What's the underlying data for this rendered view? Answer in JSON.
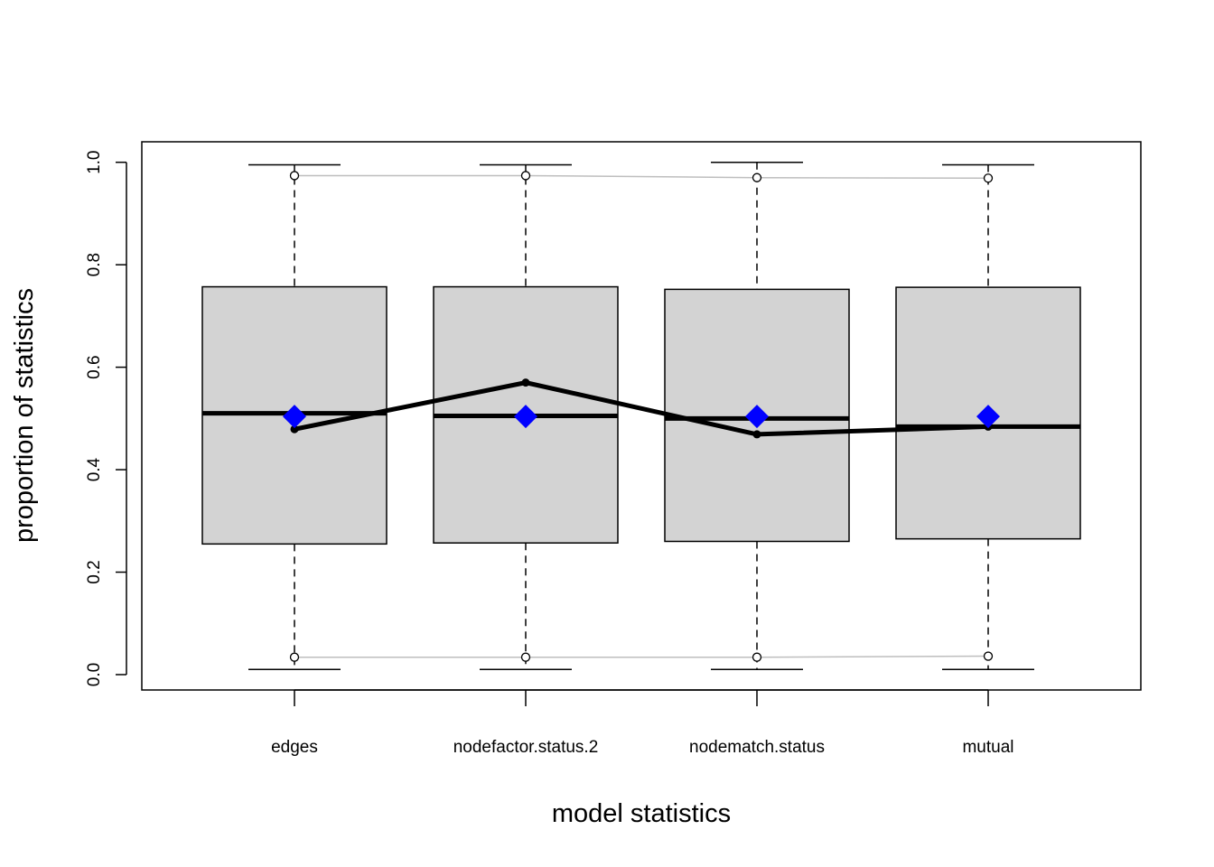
{
  "chart_data": {
    "type": "boxplot",
    "xlabel": "model statistics",
    "ylabel": "proportion of statistics",
    "ylim": [
      -0.03,
      1.04
    ],
    "yticks": [
      0.0,
      0.2,
      0.4,
      0.6,
      0.8,
      1.0
    ],
    "ytick_labels": [
      "0.0",
      "0.2",
      "0.4",
      "0.6",
      "0.8",
      "1.0"
    ],
    "categories": [
      "edges",
      "nodefactor.status.2",
      "nodematch.status",
      "mutual"
    ],
    "boxes": [
      {
        "min": 0.01,
        "q1": 0.255,
        "median": 0.51,
        "q3": 0.757,
        "max": 0.995
      },
      {
        "min": 0.01,
        "q1": 0.257,
        "median": 0.505,
        "q3": 0.757,
        "max": 0.995
      },
      {
        "min": 0.01,
        "q1": 0.26,
        "median": 0.5,
        "q3": 0.752,
        "max": 1.0
      },
      {
        "min": 0.01,
        "q1": 0.265,
        "median": 0.484,
        "q3": 0.756,
        "max": 0.995
      }
    ],
    "observed": [
      0.479,
      0.57,
      0.469,
      0.484
    ],
    "diamond_markers": [
      0.504,
      0.504,
      0.504,
      0.504
    ],
    "upper_band": [
      0.974,
      0.974,
      0.97,
      0.969
    ],
    "lower_band": [
      0.034,
      0.034,
      0.034,
      0.036
    ],
    "colors": {
      "box_fill": "#d3d3d3",
      "diamond": "#0000ff",
      "band": "#bebebe",
      "line": "#000000"
    }
  }
}
